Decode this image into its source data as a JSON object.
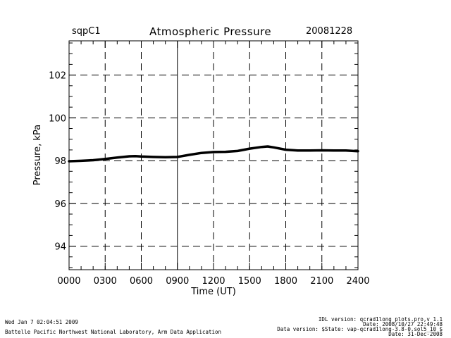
{
  "header": {
    "site": "sqpC1",
    "title": "Atmospheric Pressure",
    "date": "20081228"
  },
  "chart_data": {
    "type": "line",
    "title": "Atmospheric Pressure",
    "xlabel": "Time (UT)",
    "ylabel": "Pressure, kPa",
    "xlim": [
      0,
      24
    ],
    "ylim": [
      92.9,
      103.6
    ],
    "x_ticks": [
      0,
      3,
      6,
      9,
      12,
      15,
      18,
      21,
      24
    ],
    "x_tick_labels": [
      "0000",
      "0300",
      "0600",
      "0900",
      "1200",
      "1500",
      "1800",
      "2100",
      "2400"
    ],
    "y_ticks": [
      94,
      96,
      98,
      100,
      102
    ],
    "y_tick_labels": [
      "94",
      "96",
      "98",
      "100",
      "102"
    ],
    "grid": true,
    "series": [
      {
        "color": "#000000",
        "x": [
          0,
          1,
          2,
          3,
          4,
          5,
          5.5,
          6,
          7,
          8,
          9,
          10,
          11,
          12,
          13,
          14,
          15,
          16,
          16.5,
          17,
          18,
          19,
          20,
          21,
          22,
          23,
          24
        ],
        "y": [
          97.97,
          97.99,
          98.02,
          98.08,
          98.14,
          98.2,
          98.21,
          98.19,
          98.17,
          98.16,
          98.17,
          98.27,
          98.36,
          98.4,
          98.41,
          98.45,
          98.56,
          98.64,
          98.66,
          98.62,
          98.51,
          98.47,
          98.47,
          98.48,
          98.47,
          98.47,
          98.44
        ]
      }
    ]
  },
  "footer": {
    "run_date": "Wed Jan  7 02:04:51 2009",
    "org": "Battelle Pacific Northwest National Laboratory, Arm Data Application",
    "idl_version": "IDL version: qcrad1long_plots.pro,v 1.1",
    "idl_date": "Date: 2008/10/27 22:49:48",
    "data_version": "Data version: $State: vap-qcrad1long-3.8-0.sol5_10 $",
    "data_date": "Date: 31-Dec-2008"
  }
}
